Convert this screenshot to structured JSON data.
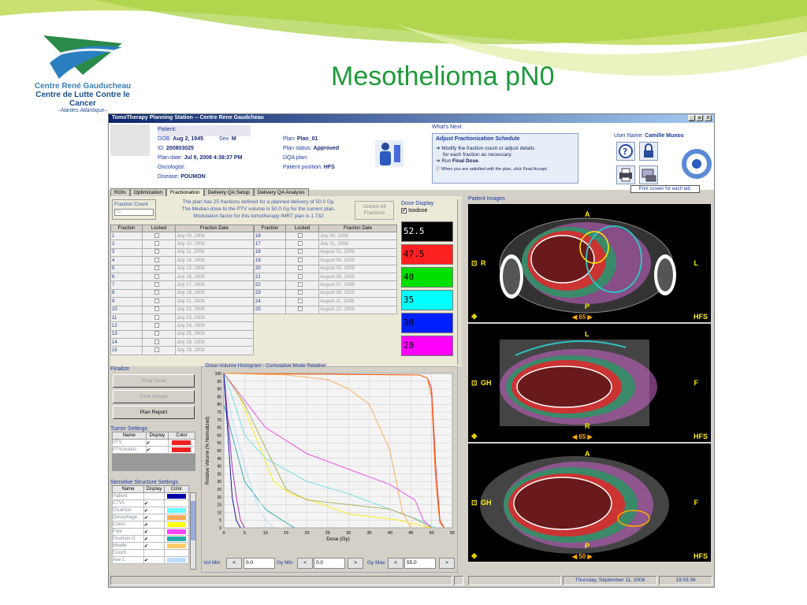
{
  "slide": {
    "title": "Mesothelioma pN0",
    "logo_line1": "Centre René Gauducheau",
    "logo_line2": "Centre de Lutte Contre le Cancer",
    "logo_line3": "–Nantes Atlantique–"
  },
  "window": {
    "title": "TomoTherapy Planning Station -- Centre Rene Gaudcheau",
    "min": "_",
    "max": "a",
    "close": "X"
  },
  "patient": {
    "patient_label": "Patient:",
    "dob_label": "DOB:",
    "dob": "Aug 2, 1945",
    "sex_label": "Sex:",
    "sex": "M",
    "id_label": "ID:",
    "id": "200803025",
    "plan_date_label": "Plan date:",
    "plan_date": "Jul 9, 2008 4:38:37 PM",
    "oncologist_label": "Oncologist:",
    "disease_label": "Disease:",
    "disease": "POUMON",
    "plan_label": "Plan:",
    "plan": "Plan_01",
    "plan_status_label": "Plan status:",
    "plan_status": "Approved",
    "dqa_label": "DQA plan:",
    "position_label": "Patient position:",
    "position": "HFS"
  },
  "whats_next": {
    "header": "What's Next",
    "title": "Adjust Fractionization Schedule",
    "line1": "Modify the fraction count or adjust details",
    "line2": "for each fraction as necessary.",
    "line3_prefix": "Run ",
    "line3_bold": "Final Dose",
    "line3_suffix": ".",
    "line4": "When you are satisfied with the plan, click Final Accept."
  },
  "user": {
    "label": "User Name:",
    "name": "Camille Munos"
  },
  "print_hint": "Print screen for each tab.",
  "tabs": [
    "ROIs",
    "Optimization",
    "Fractionation",
    "Delivery QA Setup",
    "Delivery QA Analysis"
  ],
  "fractionation": {
    "count_label": "Fraction Count",
    "count_value": "25",
    "info1": "The plan has 25 fractions defined for a planned delivery of 50.0 Gy.",
    "info2": "The Median dose to the PTV volume is 50.0 Gy for the current plan.",
    "info3": "Modulation factor for this tomotherapy IMRT plan is 1.732",
    "unlock": "Unlock All Fractions",
    "headers": [
      "Fraction",
      "Locked",
      "Fraction Date"
    ],
    "left": [
      [
        "1",
        "July 09, 2008"
      ],
      [
        "2",
        "July 10, 2008"
      ],
      [
        "3",
        "July 11, 2008"
      ],
      [
        "4",
        "July 14, 2008"
      ],
      [
        "5",
        "July 15, 2008"
      ],
      [
        "6",
        "July 16, 2008"
      ],
      [
        "7",
        "July 17, 2008"
      ],
      [
        "8",
        "July 18, 2008"
      ],
      [
        "9",
        "July 21, 2008"
      ],
      [
        "10",
        "July 22, 2008"
      ],
      [
        "11",
        "July 23, 2008"
      ],
      [
        "12",
        "July 24, 2008"
      ],
      [
        "13",
        "July 25, 2008"
      ],
      [
        "14",
        "July 28, 2008"
      ],
      [
        "15",
        "July 29, 2008"
      ]
    ],
    "right": [
      [
        "16",
        "July 30, 2008"
      ],
      [
        "17",
        "July 31, 2008"
      ],
      [
        "18",
        "August 01, 2008"
      ],
      [
        "19",
        "August 04, 2008"
      ],
      [
        "20",
        "August 05, 2008"
      ],
      [
        "21",
        "August 06, 2008"
      ],
      [
        "22",
        "August 07, 2008"
      ],
      [
        "23",
        "August 08, 2008"
      ],
      [
        "24",
        "August 11, 2008"
      ],
      [
        "25",
        "August 12, 2008"
      ]
    ]
  },
  "dose_display": {
    "title": "Dose Display",
    "isodose": "Isodose",
    "levels": [
      {
        "v": "52.5",
        "bg": "#000000",
        "fg": "#ffffff"
      },
      {
        "v": "47.5",
        "bg": "#ff2020",
        "fg": "#000000"
      },
      {
        "v": "40",
        "bg": "#00e000",
        "fg": "#000000"
      },
      {
        "v": "35",
        "bg": "#00ffff",
        "fg": "#000000"
      },
      {
        "v": "30",
        "bg": "#0020ff",
        "fg": "#000000"
      },
      {
        "v": "20",
        "bg": "#ff00ff",
        "fg": "#000000"
      }
    ]
  },
  "finalize": {
    "title": "Finalize",
    "final_dose": "Final Dose",
    "final_accept": "Final Accept",
    "plan_report": "Plan Report"
  },
  "tumor": {
    "title": "Tumor Settings",
    "headers": [
      "Name",
      "Display",
      "Color"
    ],
    "rows": [
      {
        "name": "PTV",
        "color": "#ee2222"
      },
      {
        "name": "PTVcicatric",
        "color": "#ee2222"
      }
    ]
  },
  "sensitive": {
    "title": "Sensitive Structure Settings",
    "headers": [
      "Name",
      "Display",
      "Color"
    ],
    "rows": [
      {
        "name": "Patient",
        "checked": false,
        "color": "#0000aa"
      },
      {
        "name": "CTV1",
        "checked": true,
        "color": "#ffffff"
      },
      {
        "name": "Cicatrice",
        "checked": true,
        "color": "#66ffff"
      },
      {
        "name": "Oesophage",
        "checked": true,
        "color": "#ffaa55"
      },
      {
        "name": "Coeur",
        "checked": true,
        "color": "#ffff00"
      },
      {
        "name": "Foie",
        "checked": true,
        "color": "#ff44ff"
      },
      {
        "name": "Poumon G",
        "checked": true,
        "color": "#22aaaa"
      },
      {
        "name": "Moelle",
        "checked": true,
        "color": "#ffcc66"
      },
      {
        "name": "Couch",
        "checked": false,
        "color": "#ffffff"
      },
      {
        "name": "Axe 1",
        "checked": true,
        "color": "#bbddff"
      }
    ]
  },
  "dvh": {
    "title": "Dose-Volume Histogram - Cumulative Mode Relative",
    "vol_min_label": "Vol Min",
    "vol_min": "0.0",
    "gy_min_label": "Gy Min",
    "gy_min": "0.0",
    "gy_max_label": "Gy Max",
    "gy_max": "55.0",
    "lt": "<",
    "gt": ">"
  },
  "chart_data": {
    "type": "line",
    "title": "Dose-Volume Histogram - Cumulative Mode Relative",
    "xlabel": "Dose (Gy)",
    "ylabel": "Relative Volume (% Normalized)",
    "xlim": [
      0,
      55
    ],
    "ylim": [
      0,
      100
    ],
    "xticks": [
      0,
      5,
      10,
      15,
      20,
      25,
      30,
      35,
      40,
      45,
      50,
      55
    ],
    "yticks": [
      0,
      5,
      10,
      15,
      20,
      25,
      30,
      35,
      40,
      45,
      50,
      55,
      60,
      65,
      70,
      75,
      80,
      85,
      90,
      95,
      100
    ],
    "grid": true,
    "series": [
      {
        "color": "#ee2222",
        "points": [
          [
            0,
            100
          ],
          [
            47,
            99
          ],
          [
            49,
            97
          ],
          [
            50,
            90
          ],
          [
            51,
            40
          ],
          [
            52,
            5
          ],
          [
            53,
            0
          ]
        ]
      },
      {
        "color": "#ff6600",
        "points": [
          [
            0,
            100
          ],
          [
            47,
            99
          ],
          [
            49,
            97
          ],
          [
            50,
            85
          ],
          [
            51,
            30
          ],
          [
            52,
            3
          ],
          [
            53,
            0
          ]
        ]
      },
      {
        "color": "#66dddd",
        "points": [
          [
            0,
            100
          ],
          [
            2,
            85
          ],
          [
            5,
            60
          ],
          [
            10,
            45
          ],
          [
            20,
            30
          ],
          [
            30,
            22
          ],
          [
            40,
            12
          ],
          [
            47,
            5
          ],
          [
            51,
            0
          ]
        ]
      },
      {
        "color": "#ffaa55",
        "points": [
          [
            0,
            100
          ],
          [
            15,
            99
          ],
          [
            25,
            96
          ],
          [
            30,
            90
          ],
          [
            35,
            80
          ],
          [
            40,
            50
          ],
          [
            43,
            10
          ],
          [
            45,
            0
          ]
        ]
      },
      {
        "color": "#ffee00",
        "points": [
          [
            0,
            100
          ],
          [
            3,
            90
          ],
          [
            6,
            70
          ],
          [
            9,
            50
          ],
          [
            12,
            30
          ],
          [
            16,
            22
          ],
          [
            25,
            14
          ],
          [
            30,
            9
          ],
          [
            42,
            5
          ],
          [
            48,
            1
          ],
          [
            50,
            0
          ]
        ]
      },
      {
        "color": "#ee44ee",
        "points": [
          [
            0,
            100
          ],
          [
            10,
            65
          ],
          [
            20,
            48
          ],
          [
            30,
            38
          ],
          [
            40,
            28
          ],
          [
            46,
            18
          ],
          [
            48,
            5
          ],
          [
            50,
            0
          ]
        ]
      },
      {
        "color": "#aaaa55",
        "points": [
          [
            0,
            100
          ],
          [
            2,
            92
          ],
          [
            5,
            80
          ],
          [
            10,
            52
          ],
          [
            15,
            25
          ],
          [
            20,
            18
          ],
          [
            30,
            15
          ],
          [
            40,
            12
          ],
          [
            45,
            7
          ],
          [
            48,
            3
          ],
          [
            50,
            0
          ]
        ]
      },
      {
        "color": "#22aaaa",
        "points": [
          [
            0,
            80
          ],
          [
            5,
            30
          ],
          [
            10,
            12
          ],
          [
            14,
            5
          ],
          [
            17,
            0
          ]
        ]
      },
      {
        "color": "#ffffff",
        "points": [
          [
            0,
            100
          ],
          [
            3,
            70
          ],
          [
            6,
            40
          ],
          [
            9,
            15
          ],
          [
            12,
            3
          ],
          [
            14,
            0
          ]
        ]
      },
      {
        "color": "#aa22aa",
        "points": [
          [
            0,
            100
          ],
          [
            1,
            70
          ],
          [
            2,
            40
          ],
          [
            3,
            20
          ],
          [
            4,
            5
          ],
          [
            5,
            0
          ]
        ]
      },
      {
        "color": "#bbddff",
        "points": [
          [
            0,
            100
          ],
          [
            2,
            70
          ],
          [
            5,
            40
          ],
          [
            8,
            15
          ],
          [
            10,
            5
          ],
          [
            12,
            0
          ]
        ]
      },
      {
        "color": "#0000aa",
        "points": [
          [
            0,
            100
          ],
          [
            1,
            60
          ],
          [
            2,
            20
          ],
          [
            3,
            5
          ],
          [
            4,
            0
          ]
        ]
      }
    ]
  },
  "images": {
    "title": "Patient Images",
    "views": [
      {
        "left": "R",
        "right": "L",
        "top": "A",
        "bottom": "P",
        "slice": "65",
        "orient": "HFS"
      },
      {
        "left": "GH",
        "right": "F",
        "top": "L",
        "bottom": "R",
        "slice": "65",
        "orient": "HFS"
      },
      {
        "left": "GH",
        "right": "F",
        "top": "A",
        "bottom": "P",
        "slice": "50",
        "orient": "HFS"
      }
    ]
  },
  "status": {
    "date": "Thursday, September 11, 2008",
    "time": "19:33:36"
  },
  "colors": {
    "slide_title": "#1e9a3a",
    "accent": "#1a3a9c"
  }
}
